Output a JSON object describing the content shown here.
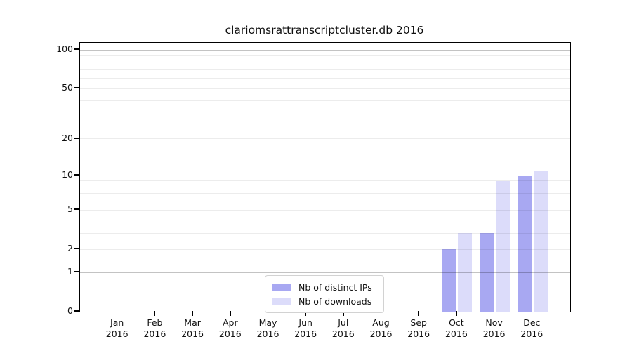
{
  "chart_data": {
    "type": "bar",
    "title": "clariomsrattranscriptcluster.db 2016",
    "categories": [
      {
        "month": "Jan",
        "year": "2016"
      },
      {
        "month": "Feb",
        "year": "2016"
      },
      {
        "month": "Mar",
        "year": "2016"
      },
      {
        "month": "Apr",
        "year": "2016"
      },
      {
        "month": "May",
        "year": "2016"
      },
      {
        "month": "Jun",
        "year": "2016"
      },
      {
        "month": "Jul",
        "year": "2016"
      },
      {
        "month": "Aug",
        "year": "2016"
      },
      {
        "month": "Sep",
        "year": "2016"
      },
      {
        "month": "Oct",
        "year": "2016"
      },
      {
        "month": "Nov",
        "year": "2016"
      },
      {
        "month": "Dec",
        "year": "2016"
      }
    ],
    "series": [
      {
        "name": "Nb of distinct IPs",
        "color": "#a8a8f2",
        "values": [
          0,
          0,
          0,
          0,
          0,
          0,
          0,
          0,
          0,
          2,
          3,
          10
        ]
      },
      {
        "name": "Nb of downloads",
        "color": "#dcdcfa",
        "values": [
          0,
          0,
          0,
          0,
          0,
          0,
          0,
          0,
          0,
          3,
          9,
          11
        ]
      }
    ],
    "xlabel": "",
    "ylabel": "",
    "y_axis": {
      "scale": "log1p",
      "ticks": [
        0,
        1,
        2,
        5,
        10,
        20,
        50,
        100
      ],
      "major_gridlines": [
        1,
        10,
        100
      ],
      "minor_gridlines": [
        2,
        3,
        4,
        5,
        6,
        7,
        8,
        9,
        20,
        30,
        40,
        50,
        60,
        70,
        80,
        90
      ],
      "ylim": [
        0,
        113
      ]
    },
    "grid": true,
    "legend_position": "inside-bottom-center",
    "colors": {
      "axis": "#000000",
      "grid_minor": "#ececec",
      "grid_major": "#c4c4c4",
      "background": "#ffffff"
    }
  }
}
